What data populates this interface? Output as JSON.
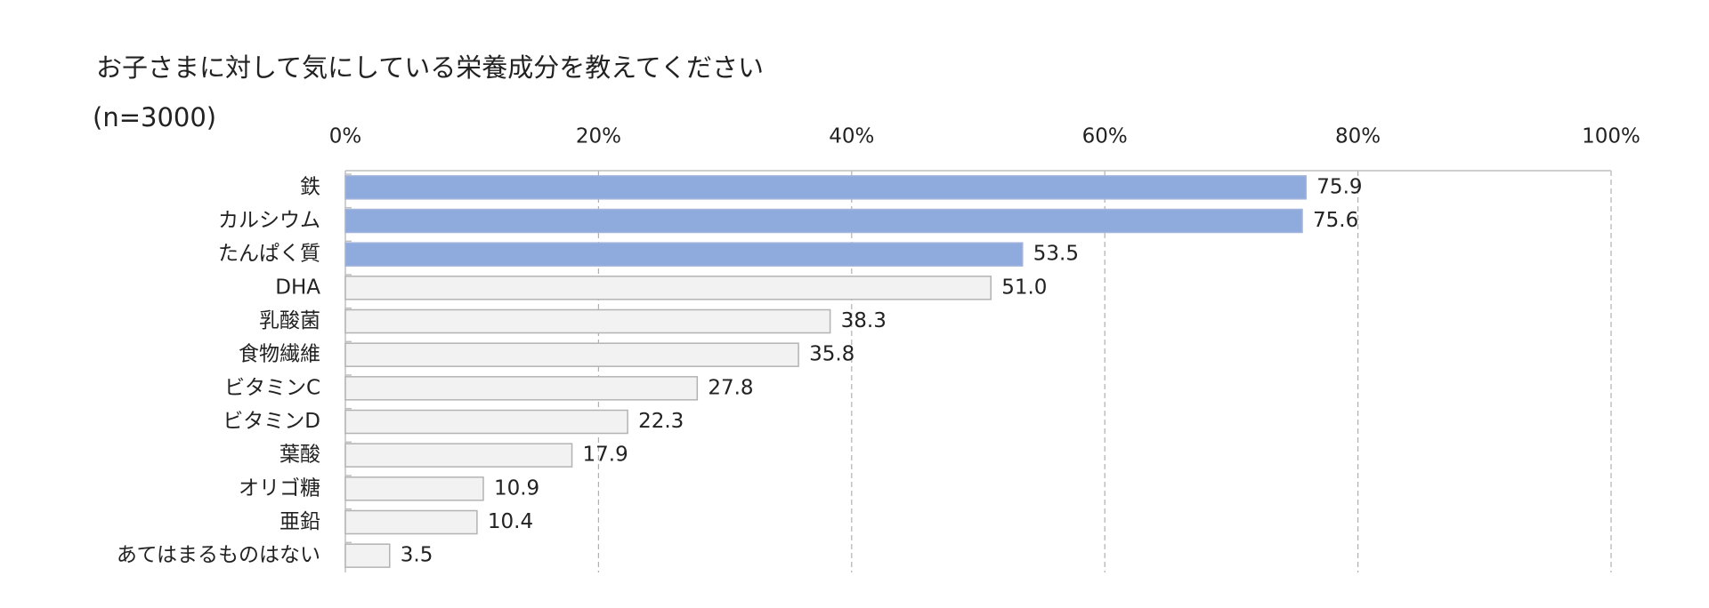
{
  "chart_data": {
    "type": "bar",
    "orientation": "horizontal",
    "title": "お子さまに対して気にしている栄養成分を教えてください",
    "subtitle": "(n=3000)",
    "categories": [
      "鉄",
      "カルシウム",
      "たんぱく質",
      "DHA",
      "乳酸菌",
      "食物繊維",
      "ビタミンC",
      "ビタミンD",
      "葉酸",
      "オリゴ糖",
      "亜鉛",
      "あてはまるものはない"
    ],
    "values": [
      75.9,
      75.6,
      53.5,
      51.0,
      38.3,
      35.8,
      27.8,
      22.3,
      17.9,
      10.9,
      10.4,
      3.5
    ],
    "value_labels": [
      "75.9",
      "75.6",
      "53.5",
      "51.0",
      "38.3",
      "35.8",
      "27.8",
      "22.3",
      "17.9",
      "10.9",
      "10.4",
      "3.5"
    ],
    "colors": [
      "#8faadc",
      "#8faadc",
      "#8faadc",
      "#f2f2f2",
      "#f2f2f2",
      "#f2f2f2",
      "#f2f2f2",
      "#f2f2f2",
      "#f2f2f2",
      "#f2f2f2",
      "#f2f2f2",
      "#f2f2f2"
    ],
    "xlim": [
      0,
      100
    ],
    "xticks": [
      {
        "value": 0,
        "label": "0%"
      },
      {
        "value": 20,
        "label": "20%"
      },
      {
        "value": 40,
        "label": "40%"
      },
      {
        "value": 60,
        "label": "60%"
      },
      {
        "value": 80,
        "label": "80%"
      },
      {
        "value": 100,
        "label": "100%"
      }
    ],
    "grid": true
  }
}
